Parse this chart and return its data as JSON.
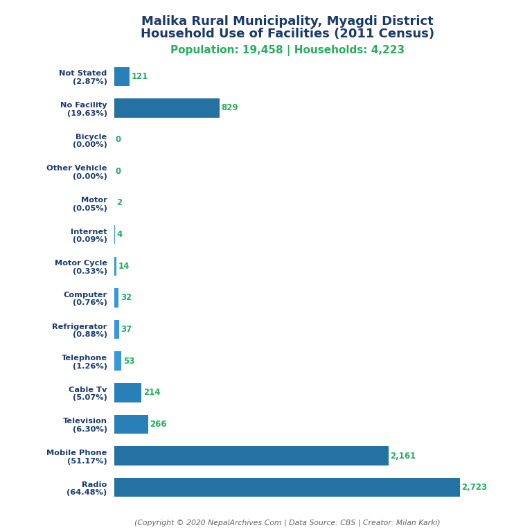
{
  "title_line1": "Malika Rural Municipality, Myagdi District",
  "title_line2": "Household Use of Facilities (2011 Census)",
  "subtitle": "Population: 19,458 | Households: 4,223",
  "footer": "(Copyright © 2020 NepalArchives.Com | Data Source: CBS | Creator: Milan Karki)",
  "categories": [
    "Radio\n(64.48%)",
    "Mobile Phone\n(51.17%)",
    "Television\n(6.30%)",
    "Cable Tv\n(5.07%)",
    "Telephone\n(1.26%)",
    "Refrigerator\n(0.88%)",
    "Computer\n(0.76%)",
    "Motor Cycle\n(0.33%)",
    "Internet\n(0.09%)",
    "Motor\n(0.05%)",
    "Other Vehicle\n(0.00%)",
    "Bicycle\n(0.00%)",
    "No Facility\n(19.63%)",
    "Not Stated\n(2.87%)"
  ],
  "values": [
    2723,
    2161,
    266,
    214,
    53,
    37,
    32,
    14,
    4,
    2,
    0,
    0,
    829,
    121
  ],
  "bar_color_large": "#2471A3",
  "bar_color_medium": "#2980B9",
  "bar_color_small": "#3498DB",
  "value_color": "#27AE60",
  "title_color": "#1A3A6B",
  "subtitle_color": "#27AE60",
  "footer_color": "#666666",
  "background_color": "#FFFFFF",
  "xlim": [
    0,
    3000
  ]
}
